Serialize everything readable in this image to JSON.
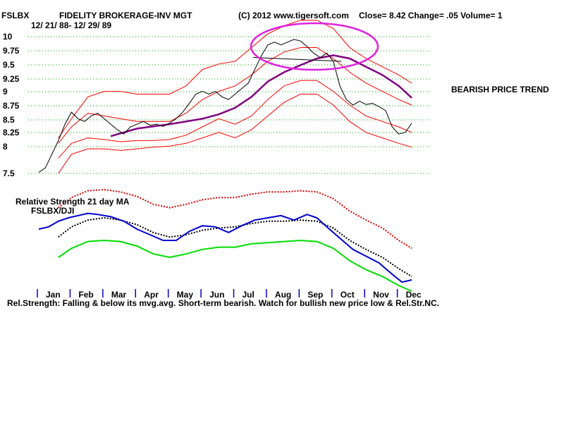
{
  "header": {
    "symbol": "FSLBX",
    "name": "FIDELITY BROKERAGE-INV MGT",
    "copyright": "(C) 2012 www.tigersoft.com",
    "quote": "Close=  8.42  Change= .05 Volume= 1",
    "date_range": "12/ 21/ 88- 12/ 29/ 89"
  },
  "annotations": {
    "trend_label": "BEARISH PRICE TREND",
    "rs_title": "Relative Strength 21 day MA",
    "rs_subtitle": "FSLBX/DJI",
    "footer": "Rel.Strength: Falling & below its mvg.avg.  Short-term bearish.  Watch for bullish new price low & Rel.Str.NC."
  },
  "colors": {
    "price": "#000000",
    "bands_thin": "#ff0000",
    "moving_avg": "#800080",
    "highlight_ellipse": "#e020e0",
    "rs_line": "#0000cc",
    "rs_upper": "#e00000",
    "rs_ma": "#000000",
    "rs_lower": "#00dd00",
    "grid": "#00aa00"
  },
  "chart_data": {
    "type": "line",
    "title": "FIDELITY BROKERAGE-INV MGT",
    "x_months": [
      "Jan",
      "Feb",
      "Mar",
      "Apr",
      "May",
      "Jun",
      "Jul",
      "Aug",
      "Sep",
      "Oct",
      "Nov",
      "Dec"
    ],
    "y_ticks": [
      "10",
      "9.75",
      "9.5",
      "9.25",
      "9",
      "8.75",
      "8.5",
      "8.25",
      "8",
      "7.5"
    ],
    "ylim": [
      7.5,
      10
    ],
    "price": [
      [
        0,
        7.52
      ],
      [
        0.2,
        7.6
      ],
      [
        0.4,
        7.85
      ],
      [
        0.6,
        8.1
      ],
      [
        0.8,
        8.4
      ],
      [
        1.0,
        8.62
      ],
      [
        1.2,
        8.5
      ],
      [
        1.4,
        8.45
      ],
      [
        1.6,
        8.55
      ],
      [
        1.8,
        8.6
      ],
      [
        2.0,
        8.5
      ],
      [
        2.2,
        8.4
      ],
      [
        2.4,
        8.3
      ],
      [
        2.6,
        8.22
      ],
      [
        2.8,
        8.35
      ],
      [
        3.0,
        8.4
      ],
      [
        3.2,
        8.45
      ],
      [
        3.4,
        8.38
      ],
      [
        3.6,
        8.4
      ],
      [
        3.8,
        8.36
      ],
      [
        4.0,
        8.42
      ],
      [
        4.2,
        8.5
      ],
      [
        4.4,
        8.62
      ],
      [
        4.6,
        8.78
      ],
      [
        4.8,
        8.95
      ],
      [
        5.0,
        9.0
      ],
      [
        5.2,
        8.95
      ],
      [
        5.4,
        9.0
      ],
      [
        5.6,
        8.9
      ],
      [
        5.8,
        8.85
      ],
      [
        6.0,
        8.95
      ],
      [
        6.2,
        9.05
      ],
      [
        6.4,
        9.15
      ],
      [
        6.6,
        9.4
      ],
      [
        6.8,
        9.65
      ],
      [
        7.0,
        9.85
      ],
      [
        7.2,
        9.9
      ],
      [
        7.4,
        9.85
      ],
      [
        7.6,
        9.9
      ],
      [
        7.8,
        9.95
      ],
      [
        8.0,
        9.92
      ],
      [
        8.2,
        9.82
      ],
      [
        8.4,
        9.7
      ],
      [
        8.6,
        9.62
      ],
      [
        8.8,
        9.7
      ],
      [
        9.0,
        9.55
      ],
      [
        9.2,
        9.1
      ],
      [
        9.4,
        8.85
      ],
      [
        9.6,
        8.75
      ],
      [
        9.8,
        8.82
      ],
      [
        10.0,
        8.76
      ],
      [
        10.2,
        8.78
      ],
      [
        10.4,
        8.72
      ],
      [
        10.6,
        8.65
      ],
      [
        10.8,
        8.35
      ],
      [
        11.0,
        8.22
      ],
      [
        11.2,
        8.25
      ],
      [
        11.4,
        8.42
      ]
    ],
    "moving_avg": [
      [
        2.2,
        8.18
      ],
      [
        3.0,
        8.32
      ],
      [
        4.0,
        8.4
      ],
      [
        5.0,
        8.5
      ],
      [
        5.5,
        8.58
      ],
      [
        6.0,
        8.7
      ],
      [
        6.5,
        8.9
      ],
      [
        7.0,
        9.18
      ],
      [
        7.5,
        9.35
      ],
      [
        8.0,
        9.48
      ],
      [
        8.5,
        9.6
      ],
      [
        9.0,
        9.66
      ],
      [
        9.5,
        9.6
      ],
      [
        10.0,
        9.45
      ],
      [
        10.5,
        9.3
      ],
      [
        11.0,
        9.1
      ],
      [
        11.4,
        8.88
      ]
    ],
    "bands": {
      "outer_upper": [
        [
          0.6,
          8.15
        ],
        [
          1.0,
          8.5
        ],
        [
          1.5,
          8.9
        ],
        [
          2.0,
          9.0
        ],
        [
          2.5,
          9.0
        ],
        [
          3.0,
          8.95
        ],
        [
          3.5,
          8.95
        ],
        [
          4.0,
          8.95
        ],
        [
          4.5,
          9.1
        ],
        [
          5.0,
          9.4
        ],
        [
          5.5,
          9.5
        ],
        [
          6.0,
          9.55
        ],
        [
          6.5,
          9.8
        ],
        [
          7.0,
          10.05
        ],
        [
          7.5,
          10.2
        ],
        [
          8.0,
          10.3
        ],
        [
          8.5,
          10.3
        ],
        [
          9.0,
          10.15
        ],
        [
          9.5,
          9.8
        ],
        [
          10.0,
          9.6
        ],
        [
          10.5,
          9.45
        ],
        [
          11.0,
          9.3
        ],
        [
          11.4,
          9.15
        ]
      ],
      "inner_upper": [
        [
          0.6,
          8.05
        ],
        [
          1.0,
          8.35
        ],
        [
          1.5,
          8.6
        ],
        [
          2.0,
          8.55
        ],
        [
          2.5,
          8.5
        ],
        [
          3.0,
          8.45
        ],
        [
          3.5,
          8.45
        ],
        [
          4.0,
          8.45
        ],
        [
          4.5,
          8.6
        ],
        [
          5.0,
          8.85
        ],
        [
          5.5,
          9.0
        ],
        [
          6.0,
          9.1
        ],
        [
          6.5,
          9.3
        ],
        [
          7.0,
          9.55
        ],
        [
          7.5,
          9.72
        ],
        [
          8.0,
          9.8
        ],
        [
          8.5,
          9.8
        ],
        [
          9.0,
          9.6
        ],
        [
          9.5,
          9.35
        ],
        [
          10.0,
          9.15
        ],
        [
          10.5,
          9.0
        ],
        [
          11.0,
          8.85
        ],
        [
          11.4,
          8.75
        ]
      ],
      "inner_lower": [
        [
          0.6,
          7.78
        ],
        [
          1.0,
          8.05
        ],
        [
          1.5,
          8.15
        ],
        [
          2.0,
          8.12
        ],
        [
          2.5,
          8.08
        ],
        [
          3.0,
          8.1
        ],
        [
          3.5,
          8.1
        ],
        [
          4.0,
          8.12
        ],
        [
          4.5,
          8.2
        ],
        [
          5.0,
          8.35
        ],
        [
          5.5,
          8.5
        ],
        [
          6.0,
          8.4
        ],
        [
          6.5,
          8.55
        ],
        [
          7.0,
          8.85
        ],
        [
          7.5,
          9.1
        ],
        [
          8.0,
          9.2
        ],
        [
          8.5,
          9.2
        ],
        [
          9.0,
          9.0
        ],
        [
          9.5,
          8.75
        ],
        [
          10.0,
          8.55
        ],
        [
          10.5,
          8.45
        ],
        [
          11.0,
          8.35
        ],
        [
          11.4,
          8.25
        ]
      ],
      "outer_lower": [
        [
          0.6,
          7.5
        ],
        [
          1.0,
          7.85
        ],
        [
          1.5,
          7.95
        ],
        [
          2.0,
          7.95
        ],
        [
          2.5,
          7.92
        ],
        [
          3.0,
          7.95
        ],
        [
          3.5,
          7.98
        ],
        [
          4.0,
          8.0
        ],
        [
          4.5,
          8.05
        ],
        [
          5.0,
          8.15
        ],
        [
          5.5,
          8.25
        ],
        [
          6.0,
          8.15
        ],
        [
          6.5,
          8.3
        ],
        [
          7.0,
          8.55
        ],
        [
          7.5,
          8.8
        ],
        [
          8.0,
          8.95
        ],
        [
          8.5,
          8.95
        ],
        [
          9.0,
          8.75
        ],
        [
          9.5,
          8.45
        ],
        [
          10.0,
          8.25
        ],
        [
          10.5,
          8.15
        ],
        [
          11.0,
          8.05
        ],
        [
          11.4,
          7.98
        ]
      ]
    },
    "neckline": [
      [
        6.55,
        9.62
      ],
      [
        9.25,
        9.55
      ]
    ],
    "rs_panel": {
      "ylim": [
        0,
        100
      ],
      "rs_line": [
        [
          0,
          50
        ],
        [
          0.3,
          52
        ],
        [
          0.6,
          57
        ],
        [
          0.9,
          60
        ],
        [
          1.2,
          62
        ],
        [
          1.5,
          64
        ],
        [
          1.8,
          63
        ],
        [
          2.2,
          61
        ],
        [
          2.6,
          57
        ],
        [
          3.0,
          50
        ],
        [
          3.4,
          45
        ],
        [
          3.8,
          40
        ],
        [
          4.2,
          40
        ],
        [
          4.6,
          48
        ],
        [
          5.0,
          53
        ],
        [
          5.4,
          52
        ],
        [
          5.8,
          47
        ],
        [
          6.2,
          53
        ],
        [
          6.6,
          58
        ],
        [
          7.0,
          60
        ],
        [
          7.4,
          62
        ],
        [
          7.8,
          58
        ],
        [
          8.2,
          63
        ],
        [
          8.5,
          60
        ],
        [
          8.8,
          52
        ],
        [
          9.2,
          42
        ],
        [
          9.6,
          32
        ],
        [
          10.0,
          26
        ],
        [
          10.4,
          20
        ],
        [
          10.8,
          10
        ],
        [
          11.1,
          3
        ],
        [
          11.4,
          5
        ]
      ],
      "rs_ma": [
        [
          0.6,
          43
        ],
        [
          1.0,
          52
        ],
        [
          1.5,
          58
        ],
        [
          2.0,
          60
        ],
        [
          2.5,
          58
        ],
        [
          3.0,
          54
        ],
        [
          3.5,
          47
        ],
        [
          4.0,
          43
        ],
        [
          4.5,
          45
        ],
        [
          5.0,
          49
        ],
        [
          5.5,
          51
        ],
        [
          6.0,
          52
        ],
        [
          6.5,
          55
        ],
        [
          7.0,
          57
        ],
        [
          7.5,
          57
        ],
        [
          8.0,
          58
        ],
        [
          8.5,
          57
        ],
        [
          9.0,
          51
        ],
        [
          9.5,
          40
        ],
        [
          10.0,
          32
        ],
        [
          10.5,
          25
        ],
        [
          11.0,
          15
        ],
        [
          11.4,
          8
        ]
      ],
      "rs_upper": [
        [
          0.6,
          69
        ],
        [
          1.0,
          78
        ],
        [
          1.5,
          84
        ],
        [
          2.0,
          85
        ],
        [
          2.5,
          83
        ],
        [
          3.0,
          79
        ],
        [
          3.5,
          72
        ],
        [
          4.0,
          69
        ],
        [
          4.5,
          72
        ],
        [
          5.0,
          76
        ],
        [
          5.5,
          78
        ],
        [
          6.0,
          78
        ],
        [
          6.5,
          81
        ],
        [
          7.0,
          83
        ],
        [
          7.5,
          83
        ],
        [
          8.0,
          84
        ],
        [
          8.5,
          83
        ],
        [
          9.0,
          77
        ],
        [
          9.5,
          66
        ],
        [
          10.0,
          58
        ],
        [
          10.5,
          51
        ],
        [
          11.0,
          40
        ],
        [
          11.4,
          33
        ]
      ],
      "rs_lower": [
        [
          0.6,
          25
        ],
        [
          1.0,
          33
        ],
        [
          1.5,
          39
        ],
        [
          2.0,
          40
        ],
        [
          2.5,
          39
        ],
        [
          3.0,
          35
        ],
        [
          3.5,
          28
        ],
        [
          4.0,
          25
        ],
        [
          4.5,
          28
        ],
        [
          5.0,
          32
        ],
        [
          5.5,
          34
        ],
        [
          6.0,
          34
        ],
        [
          6.5,
          37
        ],
        [
          7.0,
          38
        ],
        [
          7.5,
          39
        ],
        [
          8.0,
          40
        ],
        [
          8.5,
          39
        ],
        [
          9.0,
          33
        ],
        [
          9.5,
          22
        ],
        [
          10.0,
          14
        ],
        [
          10.5,
          8
        ],
        [
          11.0,
          0
        ],
        [
          11.4,
          -5
        ]
      ]
    }
  }
}
